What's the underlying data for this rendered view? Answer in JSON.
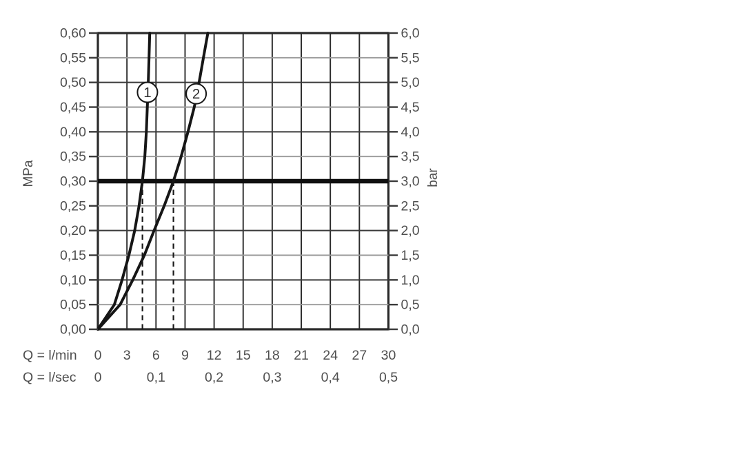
{
  "chart_data": {
    "type": "line",
    "title": "",
    "description": "Flow rate vs pressure loss diagram with two curves labelled 1 and 2, reference line at 0.30 MPa (3.0 bar), dashed guides at the flow rates where each curve reaches 3 bar",
    "x_axis": {
      "range": [
        0,
        30
      ],
      "gridline_step": 3,
      "rows": [
        {
          "label": "Q = l/min",
          "ticks": [
            {
              "q": 0,
              "text": "0"
            },
            {
              "q": 3,
              "text": "3"
            },
            {
              "q": 6,
              "text": "6"
            },
            {
              "q": 9,
              "text": "9"
            },
            {
              "q": 12,
              "text": "12"
            },
            {
              "q": 15,
              "text": "15"
            },
            {
              "q": 18,
              "text": "18"
            },
            {
              "q": 21,
              "text": "21"
            },
            {
              "q": 24,
              "text": "24"
            },
            {
              "q": 27,
              "text": "27"
            },
            {
              "q": 30,
              "text": "30"
            }
          ]
        },
        {
          "label": "Q = l/sec",
          "ticks": [
            {
              "q": 0,
              "text": "0"
            },
            {
              "q": 6,
              "text": "0,1"
            },
            {
              "q": 12,
              "text": "0,2"
            },
            {
              "q": 18,
              "text": "0,3"
            },
            {
              "q": 24,
              "text": "0,4"
            },
            {
              "q": 30,
              "text": "0,5"
            }
          ]
        }
      ]
    },
    "y_axis_left": {
      "label": "MPa",
      "range": [
        0,
        0.6
      ],
      "step": 0.05,
      "tick_labels": [
        "0,00",
        "0,05",
        "0,10",
        "0,15",
        "0,20",
        "0,25",
        "0,30",
        "0,35",
        "0,40",
        "0,45",
        "0,50",
        "0,55",
        "0,60"
      ]
    },
    "y_axis_right": {
      "label": "bar",
      "range": [
        0,
        6
      ],
      "step": 0.5,
      "tick_labels": [
        "0,0",
        "0,5",
        "1,0",
        "1,5",
        "2,0",
        "2,5",
        "3,0",
        "3,5",
        "4,0",
        "4,5",
        "5,0",
        "5,5",
        "6,0"
      ]
    },
    "reference_line": {
      "mpa": 0.3,
      "bar": 3.0
    },
    "dashed_guides": [
      {
        "q": 4.6,
        "to_mpa": 0.3
      },
      {
        "q": 7.8,
        "to_mpa": 0.3
      }
    ],
    "series": [
      {
        "name": "1",
        "marker": {
          "q": 5.12,
          "mpa": 0.48
        },
        "points": [
          [
            0,
            0
          ],
          [
            1.7,
            0.05
          ],
          [
            2.5,
            0.1
          ],
          [
            3.2,
            0.15
          ],
          [
            3.8,
            0.2
          ],
          [
            4.25,
            0.25
          ],
          [
            4.6,
            0.3
          ],
          [
            4.85,
            0.35
          ],
          [
            5.0,
            0.4
          ],
          [
            5.1,
            0.45
          ],
          [
            5.2,
            0.5
          ],
          [
            5.28,
            0.55
          ],
          [
            5.35,
            0.6
          ]
        ]
      },
      {
        "name": "2",
        "marker": {
          "q": 10.15,
          "mpa": 0.477
        },
        "points": [
          [
            0,
            0
          ],
          [
            2.3,
            0.05
          ],
          [
            3.6,
            0.1
          ],
          [
            4.8,
            0.15
          ],
          [
            5.8,
            0.2
          ],
          [
            6.85,
            0.25
          ],
          [
            7.8,
            0.3
          ],
          [
            8.6,
            0.35
          ],
          [
            9.3,
            0.4
          ],
          [
            9.95,
            0.45
          ],
          [
            10.45,
            0.5
          ],
          [
            10.9,
            0.55
          ],
          [
            11.35,
            0.6
          ]
        ]
      }
    ],
    "grid": true,
    "legend_position": "none",
    "colors": {
      "background": "#ffffff",
      "grid_major": "#3a3a3a",
      "grid_minor": "#9a9a9a",
      "frame": "#2a2a2a",
      "curve": "#161616",
      "reference": "#0f0f0f",
      "dashed": "#1a1a1a",
      "text": "#4f4f4f",
      "marker_fill": "#ffffff"
    }
  }
}
